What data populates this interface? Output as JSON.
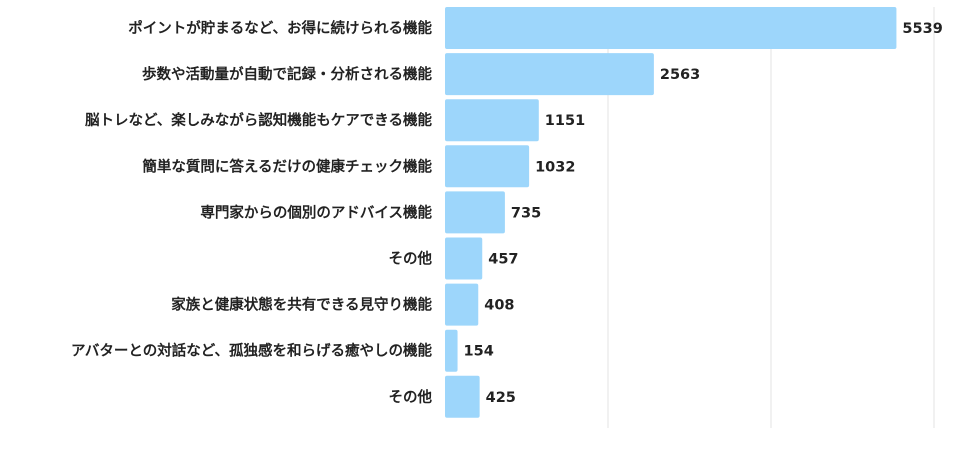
{
  "chart_data": {
    "type": "bar",
    "orientation": "horizontal",
    "categories": [
      "ポイントが貯まるなど、お得に続けられる機能",
      "歩数や活動量が自動で記録・分析される機能",
      "脳トレなど、楽しみながら認知機能もケアできる機能",
      "簡単な質問に答えるだけの健康チェック機能",
      "専門家からの個別のアドバイス機能",
      "その他",
      "家族と健康状態を共有できる見守り機能",
      "アバターとの対話など、孤独感を和らげる癒やしの機能",
      "その他"
    ],
    "values": [
      5539,
      2563,
      1151,
      1032,
      735,
      457,
      408,
      154,
      425
    ],
    "value_labels": [
      "5539",
      "2563",
      "1151",
      "1032",
      "735",
      "457",
      "408",
      "154",
      "425"
    ],
    "xlim": [
      0,
      6000
    ],
    "grid": true,
    "colors": {
      "bar": "#9dd6fb",
      "grid": "#e3e3e3",
      "text": "#222222"
    }
  }
}
